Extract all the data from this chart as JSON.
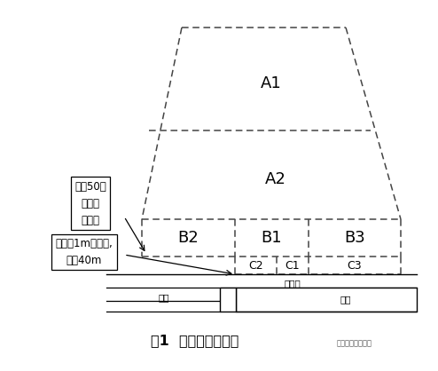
{
  "title": "图1  基坑分区分布图",
  "title_right": "地基基础专业施工",
  "bg_color": "#ffffff",
  "text_color": "#000000",
  "dashed_color": "#444444",
  "label_A1": "A1",
  "label_A2": "A2",
  "label_B1": "B1",
  "label_B2": "B2",
  "label_B3": "B3",
  "label_C1": "C1",
  "label_C2": "C2",
  "label_C3": "C3",
  "annotation1": "地铁50米\n保护区\n范围线",
  "annotation2": "已施工1m厚地墙,\n墙长40m",
  "subway_labels": [
    "隧道",
    "连通道",
    "车站"
  ],
  "figsize": [
    4.94,
    4.18
  ],
  "dpi": 100
}
